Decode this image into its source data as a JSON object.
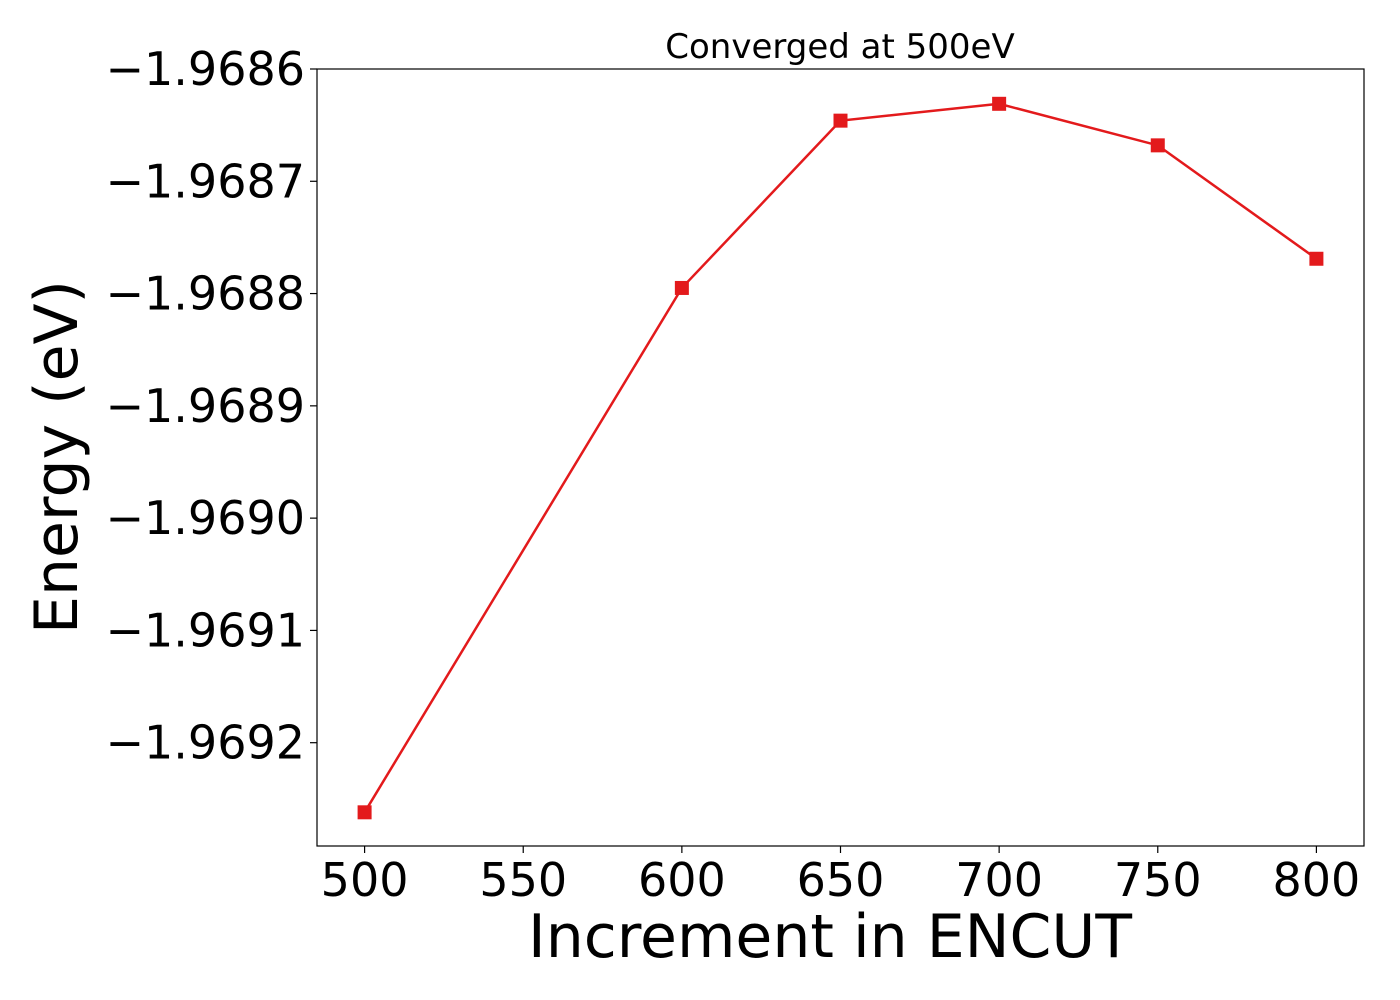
{
  "chart_data": {
    "type": "line",
    "title": "Converged at 500eV",
    "xlabel": "Increment in ENCUT",
    "ylabel": "Energy (eV)",
    "x": [
      500,
      600,
      650,
      700,
      750,
      800
    ],
    "series": [
      {
        "values": [
          -1.969262,
          -1.968795,
          -1.968646,
          -1.968631,
          -1.968668,
          -1.968769
        ],
        "color": "#e31a1c",
        "marker": "square"
      }
    ],
    "xticks": [
      500,
      550,
      600,
      650,
      700,
      750,
      800
    ],
    "xtick_labels": [
      "500",
      "550",
      "600",
      "650",
      "700",
      "750",
      "800"
    ],
    "yticks": [
      -1.9692,
      -1.9691,
      -1.969,
      -1.9689,
      -1.9688,
      -1.9687,
      -1.9686
    ],
    "ytick_labels": [
      "−1.9692",
      "−1.9691",
      "−1.9690",
      "−1.9689",
      "−1.9688",
      "−1.9687",
      "−1.9686"
    ],
    "xlim": [
      485,
      815
    ],
    "ylim": [
      -1.969292,
      -1.9686
    ],
    "grid": false,
    "legend": "none"
  }
}
